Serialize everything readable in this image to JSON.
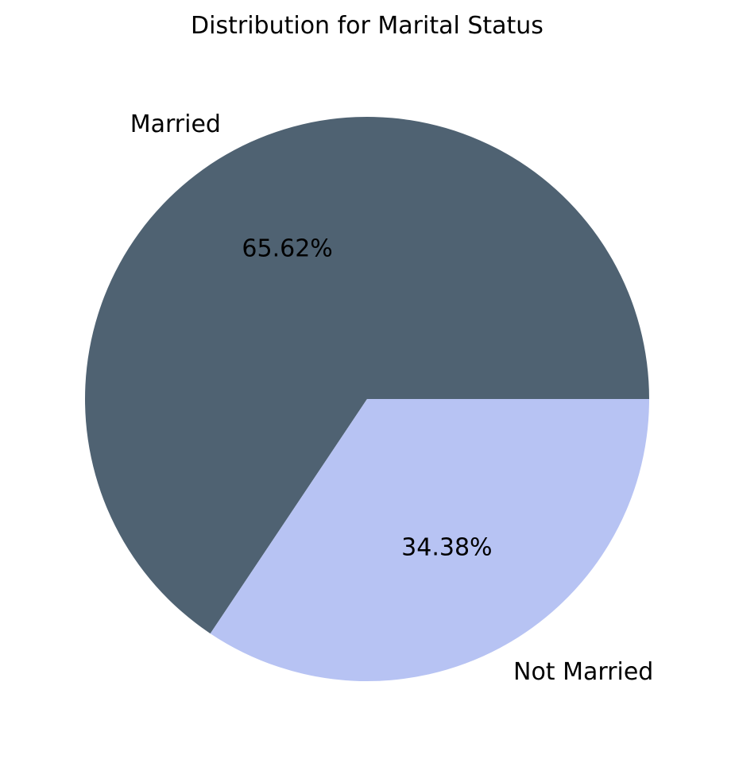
{
  "chart_data": {
    "type": "pie",
    "title": "Distribution for Marital Status",
    "slices": [
      {
        "label": "Married",
        "value": 65.62,
        "display": "65.62%",
        "color": "#4f6272"
      },
      {
        "label": "Not Married",
        "value": 34.38,
        "display": "34.38%",
        "color": "#b7c3f3"
      }
    ],
    "start_angle_deg": 0,
    "direction": "counterclockwise"
  }
}
